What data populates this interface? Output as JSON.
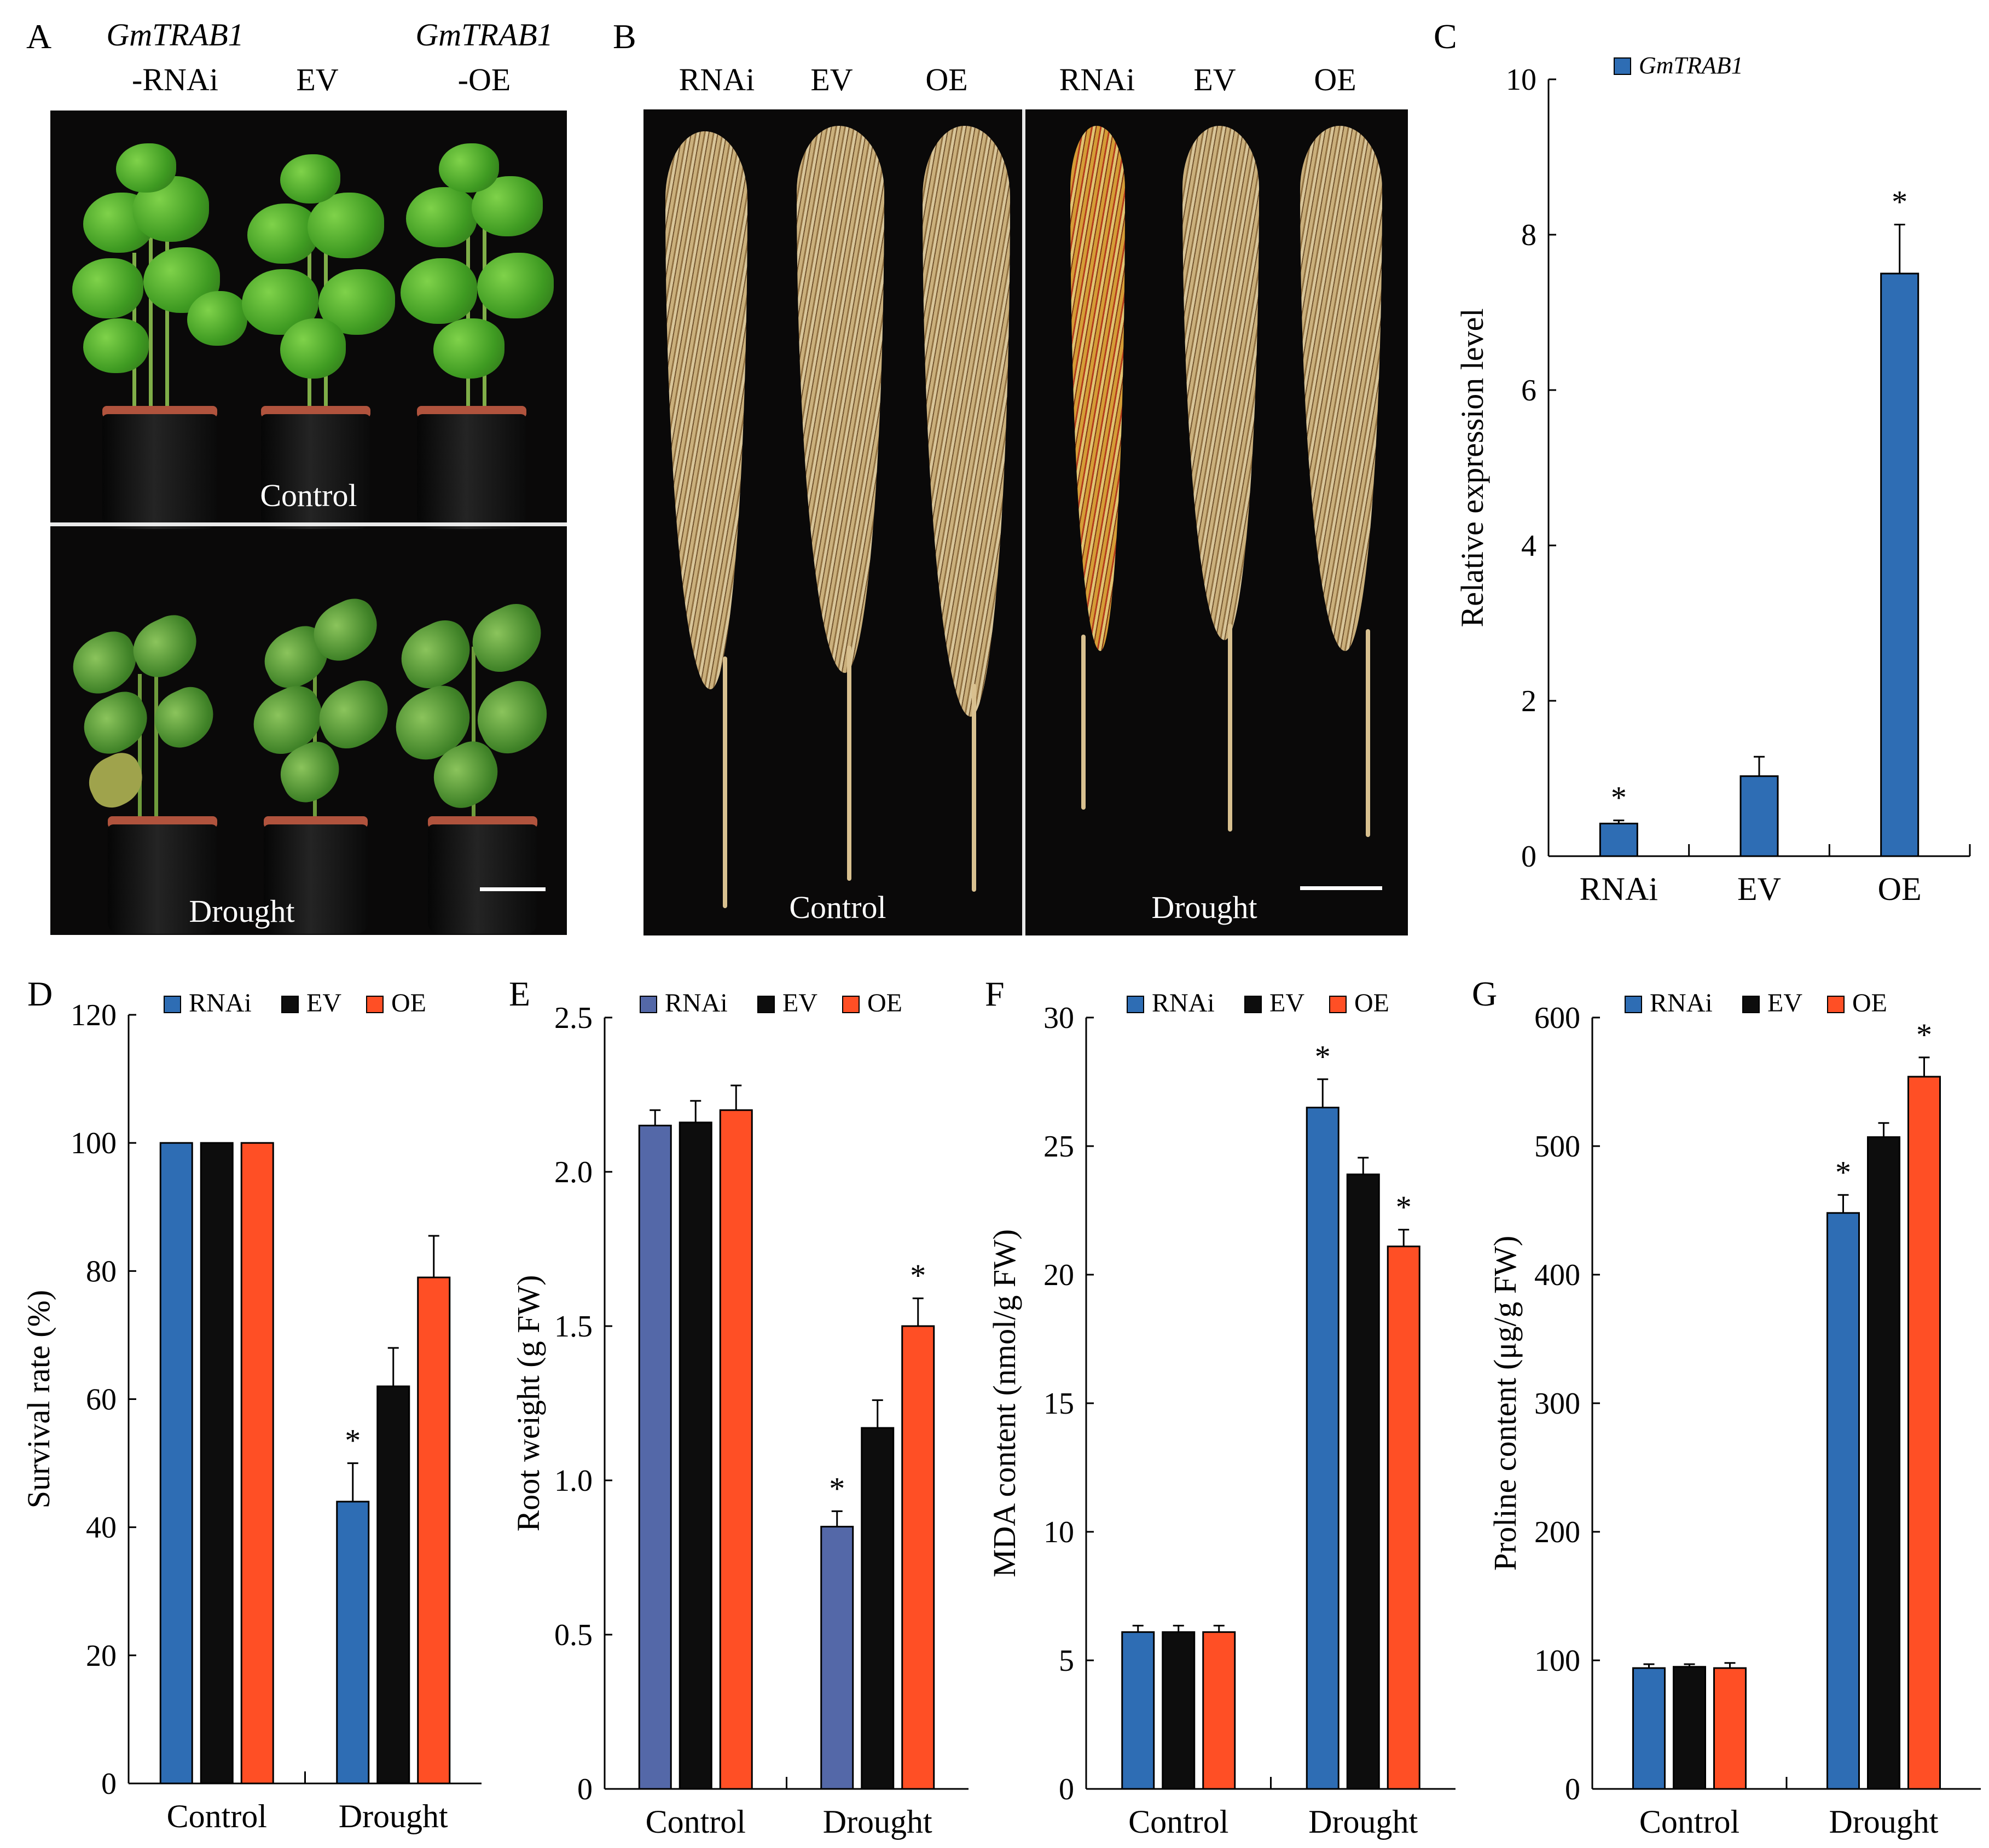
{
  "panels": {
    "A": {
      "letter": "A",
      "gene_prefix": "GmTRAB1",
      "col_labels": [
        "-RNAi",
        "EV",
        "-OE"
      ],
      "gene_left": "GmTRAB1",
      "gene_right": "GmTRAB1",
      "control_label": "Control",
      "drought_label": "Drought"
    },
    "B": {
      "letter": "B",
      "col_labels": [
        "RNAi",
        "EV",
        "OE",
        "RNAi",
        "EV",
        "OE"
      ],
      "control_label": "Control",
      "drought_label": "Drought"
    },
    "C": {
      "letter": "C"
    },
    "D": {
      "letter": "D"
    },
    "E": {
      "letter": "E"
    },
    "F": {
      "letter": "F"
    },
    "G": {
      "letter": "G"
    }
  },
  "colors": {
    "blue": "#2e6db4",
    "slate_blue": "#5468a8",
    "black": "#0d0d0d",
    "orange": "#ff4f25"
  },
  "chart_data": [
    {
      "panel": "C",
      "type": "bar",
      "categories": [
        "RNAi",
        "EV",
        "OE"
      ],
      "series": [
        {
          "name": "GmTRAB1",
          "values": [
            0.42,
            1.03,
            7.5
          ],
          "errors": [
            0.04,
            0.25,
            0.63
          ],
          "color": "#2e6db4"
        }
      ],
      "significant": [
        true,
        false,
        true
      ],
      "ylabel": "Relative expression level",
      "ylim": [
        0,
        10
      ],
      "yticks": [
        0,
        2,
        4,
        6,
        8,
        10
      ],
      "legend": "top-left",
      "significance_marker": "*"
    },
    {
      "panel": "D",
      "type": "bar",
      "categories": [
        "Control",
        "Drought"
      ],
      "series": [
        {
          "name": "RNAi",
          "values": [
            100,
            44
          ],
          "errors": [
            0,
            6
          ],
          "color": "#2e6db4"
        },
        {
          "name": "EV",
          "values": [
            100,
            62
          ],
          "errors": [
            0,
            6
          ],
          "color": "#0d0d0d"
        },
        {
          "name": "OE",
          "values": [
            100,
            79
          ],
          "errors": [
            0,
            6.5
          ],
          "color": "#ff4f25"
        }
      ],
      "significant": [
        [
          false,
          true
        ],
        [
          false,
          false
        ],
        [
          false,
          false
        ]
      ],
      "ylabel": "Survival rate (%)",
      "ylim": [
        0,
        120
      ],
      "yticks": [
        0,
        20,
        40,
        60,
        80,
        100,
        120
      ],
      "legend": "top",
      "significance_marker": "*"
    },
    {
      "panel": "E",
      "type": "bar",
      "categories": [
        "Control",
        "Drought"
      ],
      "series": [
        {
          "name": "RNAi",
          "values": [
            2.15,
            0.85
          ],
          "errors": [
            0.05,
            0.05
          ],
          "color": "#5468a8"
        },
        {
          "name": "EV",
          "values": [
            2.16,
            1.17
          ],
          "errors": [
            0.07,
            0.09
          ],
          "color": "#0d0d0d"
        },
        {
          "name": "OE",
          "values": [
            2.2,
            1.5
          ],
          "errors": [
            0.08,
            0.09
          ],
          "color": "#ff4f25"
        }
      ],
      "significant": [
        [
          false,
          true
        ],
        [
          false,
          false
        ],
        [
          false,
          true
        ]
      ],
      "ylabel": "Root weight (g FW)",
      "ylim": [
        0,
        2.5
      ],
      "yticks": [
        "0",
        "0.5",
        "1.0",
        "1.5",
        "2.0",
        "2.5"
      ],
      "legend": "top",
      "significance_marker": "*"
    },
    {
      "panel": "F",
      "type": "bar",
      "categories": [
        "Control",
        "Drought"
      ],
      "series": [
        {
          "name": "RNAi",
          "values": [
            6.1,
            26.5
          ],
          "errors": [
            0.25,
            1.1
          ],
          "color": "#2e6db4"
        },
        {
          "name": "EV",
          "values": [
            6.1,
            23.9
          ],
          "errors": [
            0.25,
            0.65
          ],
          "color": "#0d0d0d"
        },
        {
          "name": "OE",
          "values": [
            6.1,
            21.1
          ],
          "errors": [
            0.25,
            0.65
          ],
          "color": "#ff4f25"
        }
      ],
      "significant": [
        [
          false,
          true
        ],
        [
          false,
          false
        ],
        [
          false,
          true
        ]
      ],
      "ylabel": "MDA content (nmol/g FW)",
      "ylim": [
        0,
        30
      ],
      "yticks": [
        0,
        5,
        10,
        15,
        20,
        25,
        30
      ],
      "legend": "top",
      "significance_marker": "*"
    },
    {
      "panel": "G",
      "type": "bar",
      "categories": [
        "Control",
        "Drought"
      ],
      "series": [
        {
          "name": "RNAi",
          "values": [
            94,
            448
          ],
          "errors": [
            3,
            14
          ],
          "color": "#2e6db4"
        },
        {
          "name": "EV",
          "values": [
            95,
            507
          ],
          "errors": [
            2,
            11
          ],
          "color": "#0d0d0d"
        },
        {
          "name": "OE",
          "values": [
            94,
            554
          ],
          "errors": [
            4,
            15
          ],
          "color": "#ff4f25"
        }
      ],
      "significant": [
        [
          false,
          true
        ],
        [
          false,
          false
        ],
        [
          false,
          true
        ]
      ],
      "ylabel": "Proline content (μg/g FW)",
      "ylim": [
        0,
        600
      ],
      "yticks": [
        0,
        100,
        200,
        300,
        400,
        500,
        600
      ],
      "legend": "top",
      "significance_marker": "*"
    }
  ]
}
